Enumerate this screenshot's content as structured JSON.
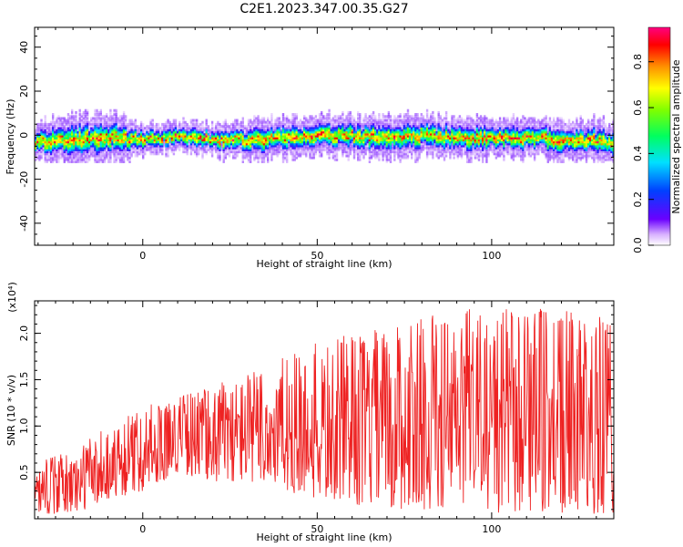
{
  "title": "C2E1.2023.347.00.35.G27",
  "chart_data": [
    {
      "type": "heatmap",
      "xlabel": "Height of straight line (km)",
      "ylabel": "Frequency (Hz)",
      "xlim": [
        -31,
        135
      ],
      "ylim": [
        -50,
        49
      ],
      "xticks": [
        0,
        50,
        100
      ],
      "yticks": [
        -40,
        -20,
        0,
        20,
        40
      ],
      "colorbar": {
        "label": "Normalized spectral amplitude",
        "range": [
          0.0,
          0.95
        ],
        "ticks": [
          "0.0",
          "0.2",
          "0.4",
          "0.6",
          "0.8"
        ]
      },
      "ridge": {
        "x": [
          -31,
          -20,
          -10,
          0,
          10,
          20,
          30,
          40,
          50,
          60,
          70,
          80,
          90,
          100,
          110,
          120,
          135
        ],
        "center_freq": [
          -3,
          -2,
          -1,
          -2,
          0,
          -2,
          -2,
          -1,
          0,
          0,
          -1,
          0,
          -1,
          -1,
          -1,
          -2,
          -3
        ],
        "half_width": [
          4,
          5,
          5,
          3,
          3,
          3,
          4,
          4,
          4,
          4,
          4,
          4,
          4,
          4,
          4,
          4,
          4
        ]
      }
    },
    {
      "type": "line",
      "xlabel": "Height of straight line (km)",
      "ylabel": "SNR (10 * v/v)",
      "yscale_note": "(x10⁴)",
      "xlim": [
        -31,
        135
      ],
      "ylim": [
        0.0,
        2.35
      ],
      "xticks": [
        0,
        50,
        100
      ],
      "yticks": [
        "0.5",
        "1.0",
        "1.5",
        "2.0"
      ],
      "ytick_values": [
        0.5,
        1.0,
        1.5,
        2.0
      ],
      "series": [
        {
          "color": "#ee2222",
          "envelope_x": [
            -31,
            -20,
            -10,
            0,
            10,
            20,
            30,
            40,
            50,
            60,
            70,
            80,
            90,
            100,
            110,
            120,
            135
          ],
          "envelope_low": [
            0.05,
            0.05,
            0.2,
            0.3,
            0.5,
            0.4,
            0.4,
            0.3,
            0.2,
            0.15,
            0.1,
            0.1,
            0.1,
            0.05,
            0.05,
            0.05,
            0.05
          ],
          "envelope_high": [
            0.6,
            0.75,
            1.0,
            1.2,
            1.35,
            1.45,
            1.6,
            1.75,
            1.9,
            2.0,
            2.1,
            2.2,
            2.25,
            2.3,
            2.3,
            2.25,
            2.2
          ]
        }
      ]
    }
  ]
}
